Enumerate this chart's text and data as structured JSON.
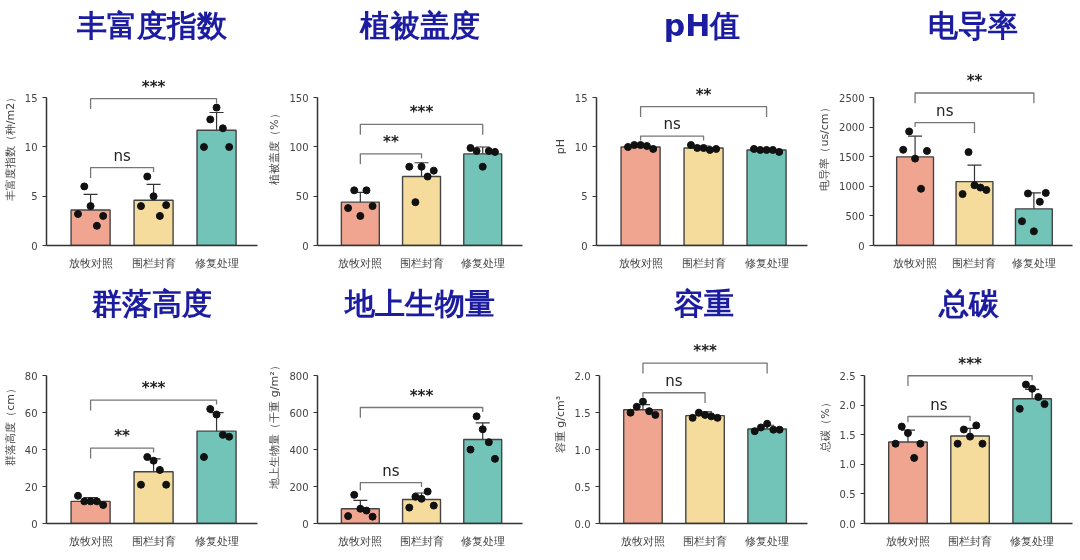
{
  "chart_data": [
    {
      "type": "bar",
      "title": "丰富度指数",
      "ylabel": "丰富度指数（种/m2）",
      "categories": [
        "放牧对照",
        "围栏封育",
        "修复处理"
      ],
      "series": [
        {
          "colors": [
            "#f0a590",
            "#f5dc9c",
            "#72c4b8"
          ],
          "values": [
            3.6,
            4.6,
            11.7
          ],
          "errors": [
            1.6,
            1.6,
            1.8
          ]
        },
        {
          "type": "scatter",
          "color": "#111111",
          "x": [
            "放牧对照",
            "放牧对照",
            "放牧对照",
            "放牧对照",
            "放牧对照",
            "围栏封育",
            "围栏封育",
            "围栏封育",
            "围栏封育",
            "围栏封育",
            "修复处理",
            "修复处理",
            "修复处理",
            "修复处理",
            "修复处理"
          ],
          "values": [
            3.2,
            6.0,
            4.0,
            2.0,
            3.0,
            4.0,
            7.0,
            5.0,
            3.0,
            4.1,
            10.0,
            12.8,
            14.0,
            11.9,
            10.0
          ]
        }
      ],
      "ylim": [
        0,
        15
      ],
      "yticks": [
        0,
        5,
        10,
        15
      ],
      "marker": "circle",
      "annotations": [
        "ns",
        "***"
      ]
    },
    {
      "type": "bar",
      "title": "植被盖度",
      "ylabel": "植被盖度（%）",
      "categories": [
        "放牧对照",
        "围栏封育",
        "修复处理"
      ],
      "series": [
        {
          "colors": [
            "#f0a590",
            "#f5dc9c",
            "#72c4b8"
          ],
          "values": [
            44,
            70,
            93
          ],
          "errors": [
            10,
            14,
            7
          ]
        },
        {
          "type": "scatter",
          "color": "#111111",
          "x": [
            "放牧对照",
            "放牧对照",
            "放牧对照",
            "放牧对照",
            "放牧对照",
            "围栏封育",
            "围栏封育",
            "围栏封育",
            "围栏封育",
            "围栏封育",
            "修复处理",
            "修复处理",
            "修复处理",
            "修复处理",
            "修复处理"
          ],
          "values": [
            38,
            56,
            30,
            56,
            40,
            80,
            44,
            80,
            70,
            76,
            99,
            96,
            80,
            96,
            95
          ]
        }
      ],
      "ylim": [
        0,
        150
      ],
      "yticks": [
        0,
        50,
        100,
        150
      ],
      "marker": "circle",
      "annotations": [
        "**",
        "***"
      ]
    },
    {
      "type": "bar",
      "title": "pH值",
      "ylabel": "pH",
      "categories": [
        "放牧对照",
        "围栏封育",
        "修复处理"
      ],
      "series": [
        {
          "colors": [
            "#f0a590",
            "#f5dc9c",
            "#72c4b8"
          ],
          "values": [
            10.0,
            9.9,
            9.7
          ],
          "errors": [
            0.2,
            0.2,
            0.1
          ]
        },
        {
          "type": "scatter",
          "color": "#111111",
          "x": [
            "放牧对照",
            "放牧对照",
            "放牧对照",
            "放牧对照",
            "放牧对照",
            "围栏封育",
            "围栏封育",
            "围栏封育",
            "围栏封育",
            "围栏封育",
            "修复处理",
            "修复处理",
            "修复处理",
            "修复处理",
            "修复处理"
          ],
          "values": [
            10.0,
            10.2,
            10.2,
            10.1,
            9.8,
            10.2,
            9.9,
            9.9,
            9.7,
            9.8,
            9.8,
            9.7,
            9.7,
            9.7,
            9.5
          ]
        }
      ],
      "ylim": [
        0,
        15
      ],
      "yticks": [
        0,
        5,
        10,
        15
      ],
      "marker": "circle",
      "annotations": [
        "ns",
        "**"
      ]
    },
    {
      "type": "bar",
      "title": "电导率",
      "ylabel": "电导率（us/cm）",
      "categories": [
        "放牧对照",
        "围栏封育",
        "修复处理"
      ],
      "series": [
        {
          "colors": [
            "#f0a590",
            "#f5dc9c",
            "#72c4b8"
          ],
          "values": [
            1500,
            1080,
            620
          ],
          "errors": [
            350,
            280,
            270
          ]
        },
        {
          "type": "scatter",
          "color": "#111111",
          "x": [
            "放牧对照",
            "放牧对照",
            "放牧对照",
            "放牧对照",
            "放牧对照",
            "围栏封育",
            "围栏封育",
            "围栏封育",
            "围栏封育",
            "围栏封育",
            "修复处理",
            "修复处理",
            "修复处理",
            "修复处理",
            "修复处理"
          ],
          "values": [
            1620,
            1930,
            1470,
            960,
            1600,
            870,
            1580,
            1020,
            980,
            940,
            410,
            880,
            240,
            740,
            890
          ]
        }
      ],
      "ylim": [
        0,
        2500
      ],
      "yticks": [
        0,
        500,
        1000,
        1500,
        2000,
        2500
      ],
      "marker": "circle",
      "annotations": [
        "ns",
        "**"
      ]
    },
    {
      "type": "bar",
      "title": "群落高度",
      "ylabel": "群落高度（cm）",
      "categories": [
        "放牧对照",
        "围栏封育",
        "修复处理"
      ],
      "series": [
        {
          "colors": [
            "#f0a590",
            "#f5dc9c",
            "#72c4b8"
          ],
          "values": [
            12,
            28,
            50
          ],
          "errors": [
            2,
            7,
            10
          ]
        },
        {
          "type": "scatter",
          "color": "#111111",
          "x": [
            "放牧对照",
            "放牧对照",
            "放牧对照",
            "放牧对照",
            "放牧对照",
            "围栏封育",
            "围栏封育",
            "围栏封育",
            "围栏封育",
            "围栏封育",
            "修复处理",
            "修复处理",
            "修复处理",
            "修复处理",
            "修复处理"
          ],
          "values": [
            15,
            12,
            12,
            12,
            10,
            21,
            36,
            34,
            29,
            21,
            36,
            62,
            59,
            48,
            47
          ]
        }
      ],
      "ylim": [
        0,
        80
      ],
      "yticks": [
        0,
        20,
        40,
        60,
        80
      ],
      "marker": "circle",
      "annotations": [
        "**",
        "***"
      ]
    },
    {
      "type": "bar",
      "title": "地上生物量",
      "ylabel": "地上生物量（干重 g/m²）",
      "categories": [
        "放牧对照",
        "围栏封育",
        "修复处理"
      ],
      "series": [
        {
          "colors": [
            "#f0a590",
            "#f5dc9c",
            "#72c4b8"
          ],
          "values": [
            80,
            130,
            455
          ],
          "errors": [
            45,
            35,
            90
          ]
        },
        {
          "type": "scatter",
          "color": "#111111",
          "x": [
            "放牧对照",
            "放牧对照",
            "放牧对照",
            "放牧对照",
            "放牧对照",
            "围栏封育",
            "围栏封育",
            "围栏封育",
            "围栏封育",
            "围栏封育",
            "修复处理",
            "修复处理",
            "修复处理",
            "修复处理",
            "修复处理"
          ],
          "values": [
            40,
            155,
            80,
            70,
            37,
            86,
            145,
            134,
            173,
            97,
            400,
            580,
            510,
            440,
            350
          ]
        }
      ],
      "ylim": [
        0,
        800
      ],
      "yticks": [
        0,
        200,
        400,
        600,
        800
      ],
      "marker": "circle",
      "annotations": [
        "ns",
        "***"
      ]
    },
    {
      "type": "bar",
      "title": "容重",
      "ylabel": "容重 g/cm³",
      "categories": [
        "放牧对照",
        "围栏封育",
        "修复处理"
      ],
      "series": [
        {
          "colors": [
            "#f0a590",
            "#f5dc9c",
            "#72c4b8"
          ],
          "values": [
            1.54,
            1.46,
            1.28
          ],
          "errors": [
            0.07,
            0.05,
            0.05
          ]
        },
        {
          "type": "scatter",
          "color": "#111111",
          "x": [
            "放牧对照",
            "放牧对照",
            "放牧对照",
            "放牧对照",
            "放牧对照",
            "围栏封育",
            "围栏封育",
            "围栏封育",
            "围栏封育",
            "围栏封育",
            "修复处理",
            "修复处理",
            "修复处理",
            "修复处理",
            "修复处理"
          ],
          "values": [
            1.5,
            1.58,
            1.65,
            1.52,
            1.47,
            1.43,
            1.5,
            1.47,
            1.45,
            1.43,
            1.25,
            1.3,
            1.35,
            1.27,
            1.27
          ]
        }
      ],
      "ylim": [
        0,
        2
      ],
      "yticks": [
        {
          "value": 0,
          "label": "0.0"
        },
        0.5,
        {
          "value": 1,
          "label": "1.0"
        },
        1.5,
        {
          "value": 2,
          "label": "2.0"
        }
      ],
      "marker": "circle",
      "annotations": [
        "ns",
        "***"
      ]
    },
    {
      "type": "bar",
      "title": "总碳",
      "ylabel": "总碳（%）",
      "categories": [
        "放牧对照",
        "围栏封育",
        "修复处理"
      ],
      "series": [
        {
          "colors": [
            "#f0a590",
            "#f5dc9c",
            "#72c4b8"
          ],
          "values": [
            1.38,
            1.48,
            2.11
          ],
          "errors": [
            0.2,
            0.13,
            0.16
          ]
        },
        {
          "type": "scatter",
          "color": "#111111",
          "x": [
            "放牧对照",
            "放牧对照",
            "放牧对照",
            "放牧对照",
            "放牧对照",
            "围栏封育",
            "围栏封育",
            "围栏封育",
            "围栏封育",
            "围栏封育",
            "修复处理",
            "修复处理",
            "修复处理",
            "修复处理",
            "修复处理"
          ],
          "values": [
            1.35,
            1.64,
            1.53,
            1.11,
            1.35,
            1.35,
            1.59,
            1.47,
            1.66,
            1.35,
            1.94,
            2.35,
            2.28,
            2.14,
            2.02
          ]
        }
      ],
      "ylim": [
        0,
        2.5
      ],
      "yticks": [
        {
          "value": 0,
          "label": "0.0"
        },
        0.5,
        {
          "value": 1,
          "label": "1.0"
        },
        1.5,
        {
          "value": 2,
          "label": "2.0"
        },
        2.5
      ],
      "marker": "circle",
      "annotations": [
        "ns",
        "***"
      ]
    }
  ]
}
